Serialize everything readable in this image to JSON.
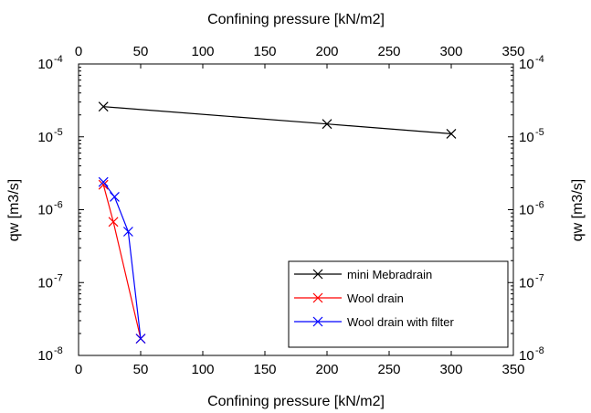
{
  "chart_data": {
    "type": "line",
    "xlabel_bottom": "Confining pressure [kN/m2]",
    "xlabel_top": "Confining pressure [kN/m2]",
    "ylabel_left": "qw [m3/s]",
    "ylabel_right": "qw [m3/s]",
    "xlim": [
      0,
      350
    ],
    "ylim": [
      1e-08,
      0.0001
    ],
    "yscale": "log",
    "x_ticks": [
      "0",
      "50",
      "100",
      "150",
      "200",
      "250",
      "300",
      "350"
    ],
    "y_ticks": [
      {
        "base": "10",
        "exp": "-8"
      },
      {
        "base": "10",
        "exp": "-7"
      },
      {
        "base": "10",
        "exp": "-6"
      },
      {
        "base": "10",
        "exp": "-5"
      },
      {
        "base": "10",
        "exp": "-4"
      }
    ],
    "grid": false,
    "legend_position": "bottom-right",
    "series": [
      {
        "name": "mini Mebradrain",
        "color": "#000000",
        "marker": "x",
        "x": [
          20,
          200,
          300
        ],
        "y": [
          2.6e-05,
          1.5e-05,
          1.1e-05
        ]
      },
      {
        "name": "Wool drain",
        "color": "#ff0000",
        "marker": "x",
        "x": [
          20,
          28,
          50
        ],
        "y": [
          2.2e-06,
          6.8e-07,
          1.7e-08
        ]
      },
      {
        "name": "Wool drain with filter",
        "color": "#0000ff",
        "marker": "x",
        "x": [
          20,
          29,
          40,
          50
        ],
        "y": [
          2.4e-06,
          1.5e-06,
          5e-07,
          1.7e-08
        ]
      }
    ]
  }
}
